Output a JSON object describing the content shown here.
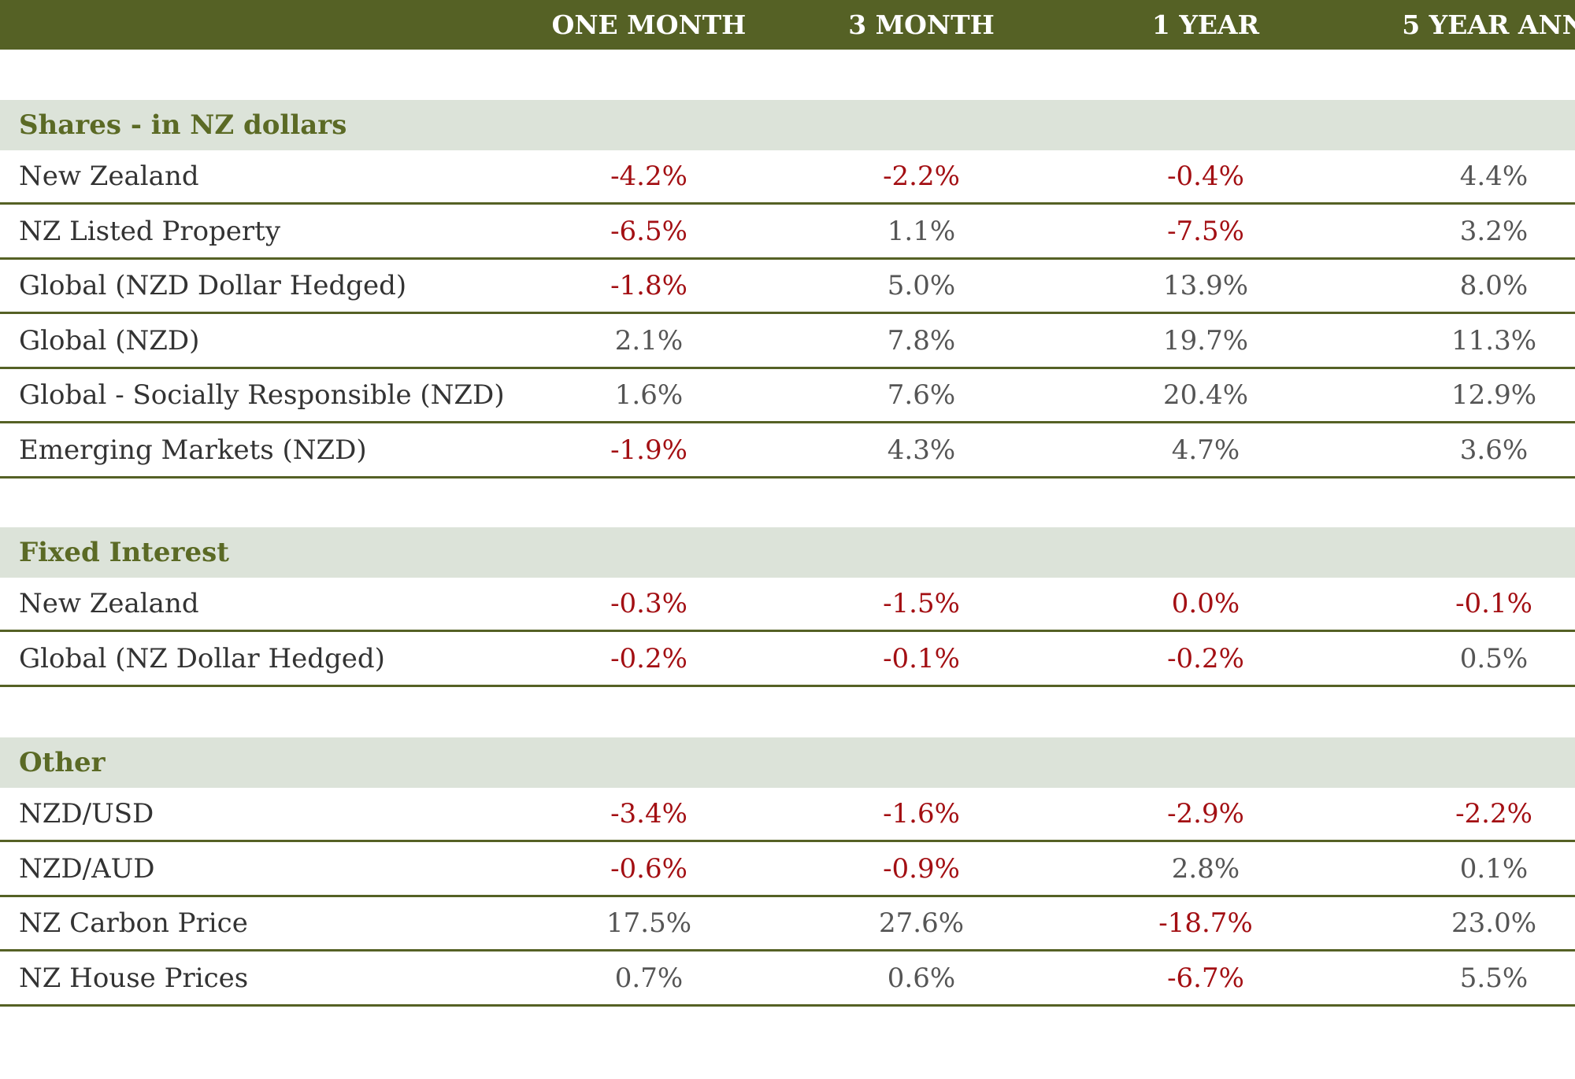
{
  "chart_data": {
    "type": "table",
    "columns": [
      "ONE MONTH",
      "3 MONTH",
      "1 YEAR",
      "5 YEAR ANN"
    ],
    "sections": [
      {
        "title": "Shares - in NZ dollars",
        "rows": [
          {
            "label": "New Zealand",
            "values": [
              "-4.2%",
              "-2.2%",
              "-0.4%",
              "4.4%"
            ]
          },
          {
            "label": "NZ Listed Property",
            "values": [
              "-6.5%",
              "1.1%",
              "-7.5%",
              "3.2%"
            ]
          },
          {
            "label": "Global (NZD Dollar Hedged)",
            "values": [
              "-1.8%",
              "5.0%",
              "13.9%",
              "8.0%"
            ]
          },
          {
            "label": "Global (NZD)",
            "values": [
              "2.1%",
              "7.8%",
              "19.7%",
              "11.3%"
            ]
          },
          {
            "label": "Global  - Socially Responsible (NZD)",
            "values": [
              "1.6%",
              "7.6%",
              "20.4%",
              "12.9%"
            ]
          },
          {
            "label": "Emerging Markets (NZD)",
            "values": [
              "-1.9%",
              "4.3%",
              "4.7%",
              "3.6%"
            ]
          }
        ]
      },
      {
        "title": "Fixed Interest",
        "rows": [
          {
            "label": "New Zealand",
            "values": [
              "-0.3%",
              "-1.5%",
              "0.0%",
              "-0.1%"
            ]
          },
          {
            "label": "Global (NZ Dollar Hedged)",
            "values": [
              "-0.2%",
              "-0.1%",
              "-0.2%",
              "0.5%"
            ]
          }
        ]
      },
      {
        "title": "Other",
        "rows": [
          {
            "label": "NZD/USD",
            "values": [
              "-3.4%",
              "-1.6%",
              "-2.9%",
              "-2.2%"
            ]
          },
          {
            "label": "NZD/AUD",
            "values": [
              "-0.6%",
              "-0.9%",
              "2.8%",
              "0.1%"
            ]
          },
          {
            "label": "NZ Carbon Price",
            "values": [
              "17.5%",
              "27.6%",
              "-18.7%",
              "23.0%"
            ]
          },
          {
            "label": "NZ House Prices",
            "values": [
              "0.7%",
              "0.6%",
              "-6.7%",
              "5.5%"
            ]
          }
        ]
      }
    ],
    "colors": {
      "header_bg": "#556125",
      "header_text": "#ffffff",
      "section_bg": "#dce3d9",
      "section_text": "#5b6a25",
      "negative": "#a30f13",
      "positive": "#555555",
      "rule": "#556125"
    }
  }
}
